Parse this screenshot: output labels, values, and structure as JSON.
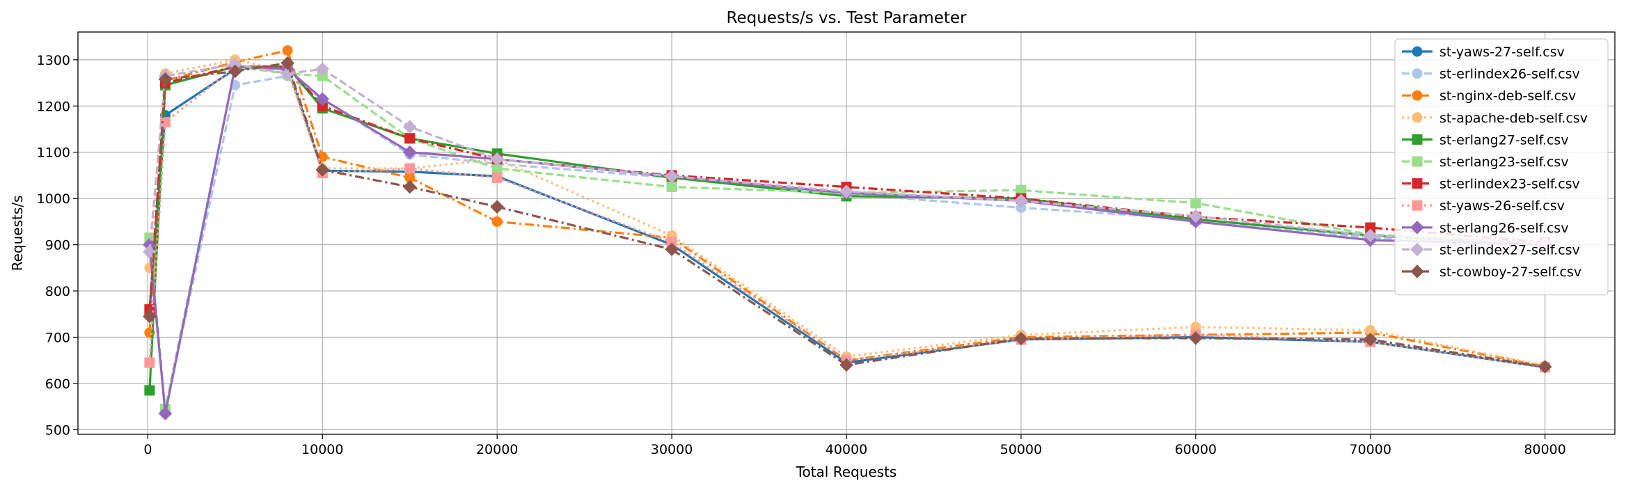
{
  "chart_data": {
    "type": "line",
    "title": "Requests/s vs. Test Parameter",
    "xlabel": "Total Requests",
    "ylabel": "Requests/s",
    "xlim": [
      -4000,
      84000
    ],
    "ylim": [
      490,
      1360
    ],
    "xticks": [
      0,
      10000,
      20000,
      30000,
      40000,
      50000,
      60000,
      70000,
      80000
    ],
    "yticks": [
      500,
      600,
      700,
      800,
      900,
      1000,
      1100,
      1200,
      1300
    ],
    "grid": true,
    "legend_position": "top-right",
    "series": [
      {
        "name": "st-yaws-27-self.csv",
        "color": "#1f77b4",
        "linestyle": "solid",
        "marker": "circle",
        "x": [
          100,
          1000,
          5000,
          8000,
          10000,
          15000,
          20000,
          30000,
          40000,
          50000,
          60000,
          70000,
          80000
        ],
        "y": [
          760,
          1180,
          1280,
          1285,
          1060,
          1058,
          1048,
          900,
          645,
          695,
          700,
          690,
          635
        ]
      },
      {
        "name": "st-erlindex26-self.csv",
        "color": "#aec7e8",
        "linestyle": "dashed",
        "marker": "circle",
        "x": [
          100,
          1000,
          5000,
          8000,
          10000,
          15000,
          20000,
          30000,
          40000,
          50000,
          60000,
          70000,
          80000
        ],
        "y": [
          885,
          540,
          1245,
          1265,
          1215,
          1095,
          1075,
          1045,
          1010,
          980,
          955,
          915,
          905
        ]
      },
      {
        "name": "st-nginx-deb-self.csv",
        "color": "#ff7f0e",
        "linestyle": "dashdot",
        "marker": "circle",
        "x": [
          100,
          1000,
          5000,
          8000,
          10000,
          15000,
          20000,
          30000,
          40000,
          50000,
          60000,
          70000,
          80000
        ],
        "y": [
          710,
          1255,
          1295,
          1320,
          1090,
          1045,
          950,
          915,
          650,
          700,
          705,
          710,
          637
        ]
      },
      {
        "name": "st-apache-deb-self.csv",
        "color": "#ffbb78",
        "linestyle": "dotted",
        "marker": "circle",
        "x": [
          100,
          1000,
          5000,
          8000,
          10000,
          15000,
          20000,
          30000,
          40000,
          50000,
          60000,
          70000,
          80000
        ],
        "y": [
          850,
          1270,
          1300,
          1275,
          1065,
          1065,
          1085,
          920,
          658,
          705,
          722,
          715,
          638
        ]
      },
      {
        "name": "st-erlang27-self.csv",
        "color": "#2ca02c",
        "linestyle": "solid",
        "marker": "square",
        "x": [
          100,
          1000,
          5000,
          8000,
          10000,
          15000,
          20000,
          30000,
          40000,
          50000,
          60000,
          70000,
          80000
        ],
        "y": [
          585,
          1245,
          1285,
          1285,
          1195,
          1130,
          1097,
          1045,
          1005,
          1000,
          955,
          920,
          900
        ]
      },
      {
        "name": "st-erlang23-self.csv",
        "color": "#98df8a",
        "linestyle": "dashed",
        "marker": "square",
        "x": [
          100,
          1000,
          5000,
          8000,
          10000,
          15000,
          20000,
          30000,
          40000,
          50000,
          60000,
          70000,
          80000
        ],
        "y": [
          915,
          545,
          1285,
          1270,
          1265,
          1130,
          1065,
          1025,
          1012,
          1018,
          990,
          922,
          903
        ]
      },
      {
        "name": "st-erlindex23-self.csv",
        "color": "#d62728",
        "linestyle": "dashdot",
        "marker": "square",
        "x": [
          100,
          1000,
          5000,
          8000,
          10000,
          15000,
          20000,
          30000,
          40000,
          50000,
          60000,
          70000,
          80000
        ],
        "y": [
          760,
          1250,
          1285,
          1285,
          1200,
          1130,
          1085,
          1050,
          1025,
          1000,
          960,
          937,
          905
        ]
      },
      {
        "name": "st-yaws-26-self.csv",
        "color": "#ff9896",
        "linestyle": "dotted",
        "marker": "square",
        "x": [
          100,
          1000,
          5000,
          8000,
          10000,
          15000,
          20000,
          30000,
          40000,
          50000,
          60000,
          70000,
          80000
        ],
        "y": [
          645,
          1165,
          1285,
          1280,
          1055,
          1065,
          1045,
          905,
          650,
          695,
          705,
          690,
          635
        ]
      },
      {
        "name": "st-erlang26-self.csv",
        "color": "#9467bd",
        "linestyle": "solid",
        "marker": "diamond",
        "x": [
          100,
          1000,
          5000,
          8000,
          10000,
          15000,
          20000,
          30000,
          40000,
          50000,
          60000,
          70000,
          80000
        ],
        "y": [
          900,
          535,
          1285,
          1280,
          1215,
          1100,
          1085,
          1048,
          1012,
          995,
          950,
          910,
          900
        ]
      },
      {
        "name": "st-erlindex27-self.csv",
        "color": "#c5b0d5",
        "linestyle": "dashed",
        "marker": "diamond",
        "x": [
          100,
          1000,
          5000,
          8000,
          10000,
          15000,
          20000,
          30000,
          40000,
          50000,
          60000,
          70000,
          80000
        ],
        "y": [
          885,
          1265,
          1290,
          1270,
          1280,
          1155,
          1085,
          1048,
          1015,
          995,
          962,
          920,
          903
        ]
      },
      {
        "name": "st-cowboy-27-self.csv",
        "color": "#8c564b",
        "linestyle": "dashdot",
        "marker": "diamond",
        "x": [
          100,
          1000,
          5000,
          8000,
          10000,
          15000,
          20000,
          30000,
          40000,
          50000,
          60000,
          70000,
          80000
        ],
        "y": [
          745,
          1258,
          1275,
          1293,
          1062,
          1025,
          982,
          890,
          640,
          697,
          698,
          695,
          636
        ]
      }
    ]
  }
}
